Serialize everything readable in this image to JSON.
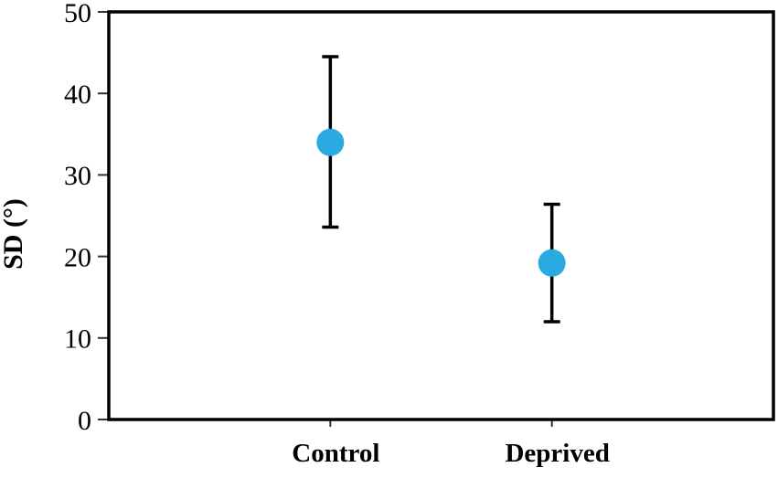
{
  "figure": {
    "background_color": "#ffffff",
    "frame_color": "#000000",
    "tick_color": "#333333"
  },
  "chart_data": {
    "type": "scatter",
    "title": "",
    "xlabel": "",
    "ylabel": "SD (°)",
    "ylim": [
      0,
      50
    ],
    "yticks": [
      0,
      10,
      20,
      30,
      40,
      50
    ],
    "categories": [
      "Control",
      "Deprived"
    ],
    "grid": false,
    "legend": "none",
    "series": [
      {
        "name": "SD",
        "marker": "circle",
        "marker_color": "#29abe2",
        "error_bar_color": "#000000",
        "points": [
          {
            "category": "Control",
            "value": 34.0,
            "error_upper": 44.5,
            "error_lower": 23.6
          },
          {
            "category": "Deprived",
            "value": 19.2,
            "error_upper": 26.4,
            "error_lower": 12.0
          }
        ]
      }
    ]
  }
}
